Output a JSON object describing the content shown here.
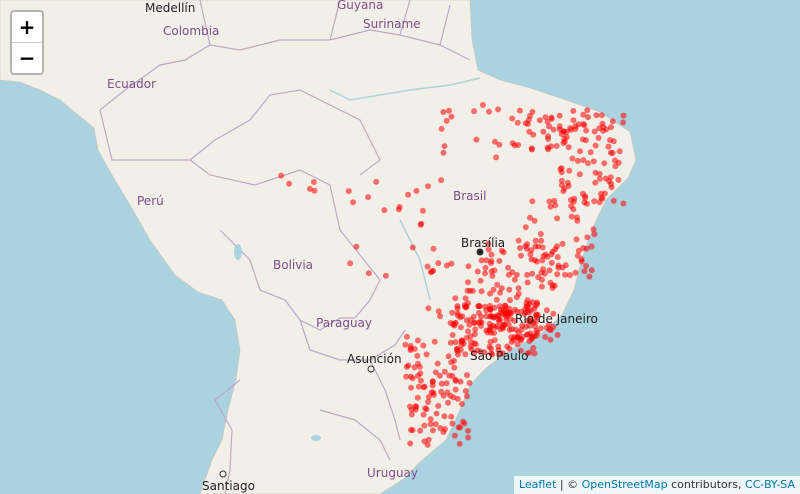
{
  "map": {
    "labels": {
      "medellin": "Medellín",
      "guyana": "Guyana",
      "suriname": "Suriname",
      "colombia": "Colombia",
      "ecuador": "Ecuador",
      "peru": "Perú",
      "brasil": "Brasil",
      "brasilia": "Brasília",
      "bolivia": "Bolivia",
      "paraguay": "Paraguay",
      "asuncion": "Asunción",
      "rio": "Rio de Janeiro",
      "sao_paulo": "São Paulo",
      "uruguay": "Uruguay",
      "santiago": "Santiago"
    },
    "marker_color": "#ff0000"
  },
  "zoom": {
    "in_label": "+",
    "out_label": "−"
  },
  "attribution": {
    "leaflet": "Leaflet",
    "sep": " | © ",
    "osm": "OpenStreetMap",
    "contrib": " contributors, ",
    "license": "CC-BY-SA"
  }
}
